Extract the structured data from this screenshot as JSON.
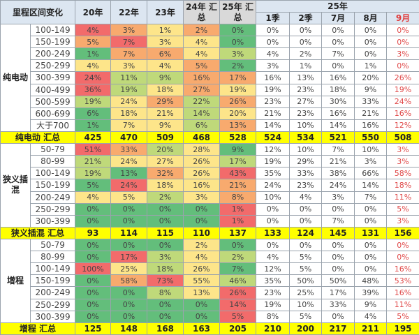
{
  "header": {
    "title": "里程区间变化",
    "years": [
      "20年",
      "22年",
      "23年",
      "24年 汇总",
      "25年 汇总"
    ],
    "group25": "25年",
    "months": [
      "1季",
      "2季",
      "7月",
      "8月",
      "9月"
    ]
  },
  "colors": {
    "heat_red": "#f26b6b",
    "heat_orange": "#f8aa6e",
    "heat_yellow": "#fde58a",
    "heat_light_green": "#bfd97a",
    "heat_green": "#63be7b",
    "total_bg": "#ffff00",
    "month9_text": "#e04848"
  },
  "groups": [
    {
      "name": "纯电动",
      "total_label": "纯电动 汇总",
      "totals": [
        "425",
        "470",
        "509",
        "468",
        "528",
        "524",
        "534",
        "521",
        "550",
        "508"
      ],
      "rows": [
        {
          "range": "100-149",
          "years": [
            "4%",
            "3%",
            "1%",
            "2%",
            "0%"
          ],
          "heat": [
            "r",
            "o",
            "y",
            "o",
            "g"
          ],
          "months": [
            "0%",
            "0%",
            "0%",
            "0%",
            "0%"
          ]
        },
        {
          "range": "150-199",
          "years": [
            "5%",
            "7%",
            "3%",
            "4%",
            "0%"
          ],
          "heat": [
            "o",
            "r",
            "y",
            "y",
            "g"
          ],
          "months": [
            "0%",
            "0%",
            "0%",
            "0%",
            "0%"
          ]
        },
        {
          "range": "200-249",
          "years": [
            "1%",
            "7%",
            "6%",
            "4%",
            "3%"
          ],
          "heat": [
            "g",
            "o",
            "o",
            "y",
            "lg"
          ],
          "months": [
            "4%",
            "2%",
            "7%",
            "0%",
            "3%"
          ]
        },
        {
          "range": "250-299",
          "years": [
            "4%",
            "3%",
            "4%",
            "5%",
            "2%"
          ],
          "heat": [
            "y",
            "y",
            "y",
            "o",
            "g"
          ],
          "months": [
            "3%",
            "1%",
            "0%",
            "1%",
            "0%"
          ]
        },
        {
          "range": "300-399",
          "years": [
            "24%",
            "11%",
            "9%",
            "16%",
            "17%"
          ],
          "heat": [
            "r",
            "lg",
            "lg",
            "o",
            "o"
          ],
          "months": [
            "16%",
            "13%",
            "16%",
            "20%",
            "26%"
          ]
        },
        {
          "range": "400-499",
          "years": [
            "36%",
            "19%",
            "18%",
            "27%",
            "19%"
          ],
          "heat": [
            "r",
            "lg",
            "y",
            "o",
            "y"
          ],
          "months": [
            "19%",
            "23%",
            "18%",
            "9%",
            "19%"
          ]
        },
        {
          "range": "500-599",
          "years": [
            "19%",
            "24%",
            "29%",
            "22%",
            "26%"
          ],
          "heat": [
            "lg",
            "y",
            "o",
            "lg",
            "o"
          ],
          "months": [
            "23%",
            "27%",
            "30%",
            "33%",
            "24%"
          ]
        },
        {
          "range": "600-699",
          "years": [
            "6%",
            "18%",
            "21%",
            "14%",
            "20%"
          ],
          "heat": [
            "g",
            "y",
            "y",
            "lg",
            "y"
          ],
          "months": [
            "21%",
            "23%",
            "16%",
            "21%",
            "16%"
          ]
        },
        {
          "range": "大于700",
          "years": [
            "1%",
            "7%",
            "9%",
            "6%",
            "13%"
          ],
          "heat": [
            "g",
            "y",
            "y",
            "lg",
            "o"
          ],
          "months": [
            "14%",
            "10%",
            "14%",
            "16%",
            "12%"
          ]
        }
      ]
    },
    {
      "name": "狭义插混",
      "total_label": "狭义插混 汇总",
      "totals": [
        "93",
        "114",
        "115",
        "110",
        "137",
        "133",
        "124",
        "145",
        "131",
        "156"
      ],
      "rows": [
        {
          "range": "50-79",
          "years": [
            "51%",
            "33%",
            "20%",
            "28%",
            "9%"
          ],
          "heat": [
            "r",
            "o",
            "lg",
            "y",
            "g"
          ],
          "months": [
            "12%",
            "10%",
            "7%",
            "10%",
            "3%"
          ]
        },
        {
          "range": "80-99",
          "years": [
            "21%",
            "24%",
            "27%",
            "26%",
            "17%"
          ],
          "heat": [
            "lg",
            "y",
            "y",
            "y",
            "lg"
          ],
          "months": [
            "19%",
            "29%",
            "21%",
            "3%",
            "3%"
          ]
        },
        {
          "range": "100-149",
          "years": [
            "19%",
            "13%",
            "32%",
            "26%",
            "43%"
          ],
          "heat": [
            "lg",
            "g",
            "o",
            "y",
            "r"
          ],
          "months": [
            "35%",
            "33%",
            "38%",
            "66%",
            "58%"
          ]
        },
        {
          "range": "150-199",
          "years": [
            "5%",
            "24%",
            "18%",
            "16%",
            "21%"
          ],
          "heat": [
            "g",
            "r",
            "y",
            "y",
            "o"
          ],
          "months": [
            "24%",
            "23%",
            "24%",
            "14%",
            "18%"
          ]
        },
        {
          "range": "200-249",
          "years": [
            "4%",
            "5%",
            "2%",
            "3%",
            "8%"
          ],
          "heat": [
            "y",
            "y",
            "lg",
            "y",
            "o"
          ],
          "months": [
            "10%",
            "4%",
            "3%",
            "7%",
            "11%"
          ]
        },
        {
          "range": "250-299",
          "years": [
            "0%",
            "0%",
            "0%",
            "0%",
            "1%"
          ],
          "heat": [
            "g",
            "g",
            "g",
            "g",
            "r"
          ],
          "months": [
            "0%",
            "0%",
            "0%",
            "0%",
            "5%"
          ]
        },
        {
          "range": "300-399",
          "years": [
            "0%",
            "0%",
            "0%",
            "0%",
            "1%"
          ],
          "heat": [
            "g",
            "g",
            "g",
            "g",
            "r"
          ],
          "months": [
            "0%",
            "0%",
            "7%",
            "0%",
            "3%"
          ]
        }
      ]
    },
    {
      "name": "增程",
      "total_label": "增程 汇总",
      "totals": [
        "125",
        "148",
        "168",
        "163",
        "205",
        "210",
        "200",
        "217",
        "211",
        "195"
      ],
      "rows": [
        {
          "range": "50-79",
          "years": [
            "0%",
            "0%",
            "0%",
            "2%",
            "0%"
          ],
          "heat": [
            "g",
            "g",
            "g",
            "y",
            "g"
          ],
          "months": [
            "0%",
            "0%",
            "0%",
            "0%",
            "0%"
          ]
        },
        {
          "range": "80-99",
          "years": [
            "0%",
            "17%",
            "3%",
            "4%",
            "2%"
          ],
          "heat": [
            "g",
            "r",
            "lg",
            "y",
            "lg"
          ],
          "months": [
            "4%",
            "5%",
            "0%",
            "0%",
            "0%"
          ]
        },
        {
          "range": "100-149",
          "years": [
            "100%",
            "25%",
            "18%",
            "26%",
            "7%"
          ],
          "heat": [
            "r",
            "y",
            "lg",
            "y",
            "g"
          ],
          "months": [
            "12%",
            "5%",
            "0%",
            "0%",
            "16%"
          ]
        },
        {
          "range": "150-199",
          "years": [
            "0%",
            "58%",
            "73%",
            "55%",
            "46%"
          ],
          "heat": [
            "g",
            "o",
            "r",
            "y",
            "lg"
          ],
          "months": [
            "35%",
            "50%",
            "50%",
            "48%",
            "53%"
          ]
        },
        {
          "range": "200-249",
          "years": [
            "0%",
            "0%",
            "8%",
            "13%",
            "26%"
          ],
          "heat": [
            "g",
            "g",
            "lg",
            "y",
            "r"
          ],
          "months": [
            "23%",
            "25%",
            "17%",
            "39%",
            "16%"
          ]
        },
        {
          "range": "250-299",
          "years": [
            "0%",
            "0%",
            "0%",
            "0%",
            "14%"
          ],
          "heat": [
            "g",
            "g",
            "g",
            "g",
            "r"
          ],
          "months": [
            "19%",
            "10%",
            "33%",
            "9%",
            "11%"
          ]
        },
        {
          "range": "300-399",
          "years": [
            "0%",
            "0%",
            "0%",
            "0%",
            "5%"
          ],
          "heat": [
            "g",
            "g",
            "g",
            "g",
            "r"
          ],
          "months": [
            "8%",
            "5%",
            "0%",
            "4%",
            "5%"
          ]
        }
      ]
    }
  ]
}
